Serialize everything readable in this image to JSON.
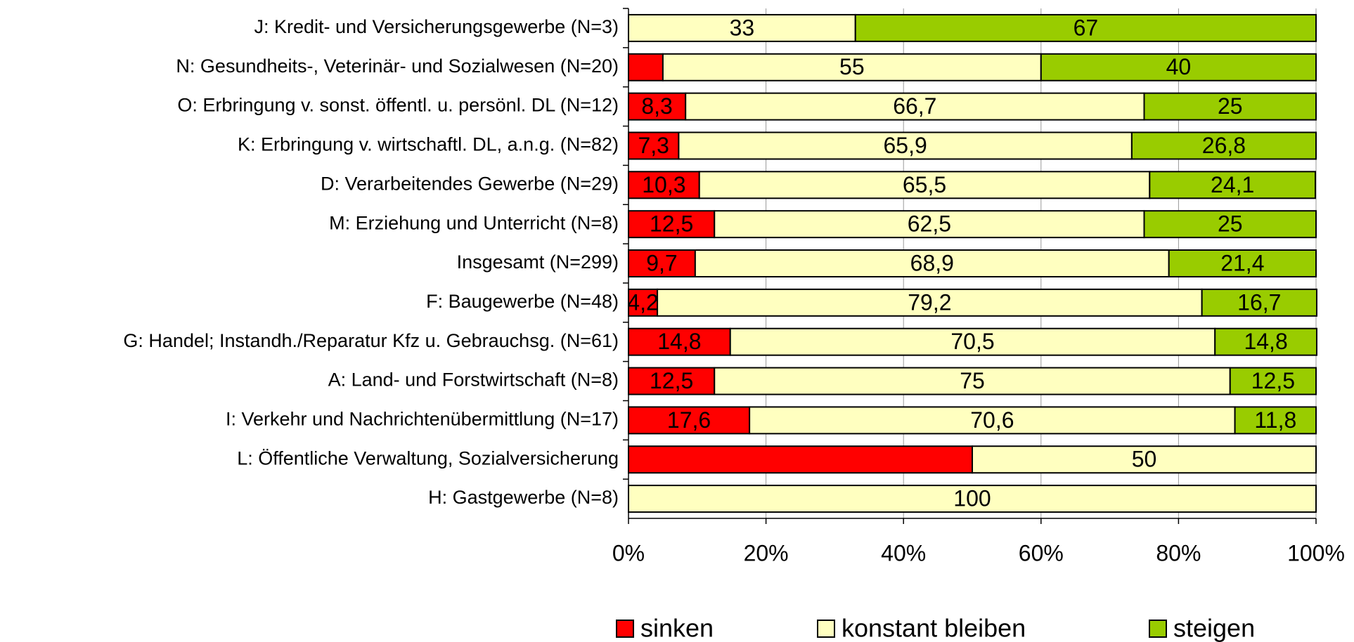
{
  "chart_data": {
    "type": "stacked-bar-horizontal",
    "categories": [
      "J: Kredit- und Versicherungsgewerbe (N=3)",
      "N: Gesundheits-, Veterinär- und Sozialwesen (N=20)",
      "O: Erbringung v. sonst. öffentl. u. persönl. DL (N=12)",
      "K: Erbringung v. wirtschaftl. DL, a.n.g. (N=82)",
      "D: Verarbeitendes Gewerbe (N=29)",
      "M: Erziehung und Unterricht (N=8)",
      "Insgesamt (N=299)",
      "F: Baugewerbe (N=48)",
      "G: Handel; Instandh./Reparatur Kfz u. Gebrauchsg. (N=61)",
      "A: Land- und Forstwirtschaft (N=8)",
      "I: Verkehr und Nachrichtenübermittlung (N=17)",
      "L: Öffentliche Verwaltung, Sozialversicherung",
      "H: Gastgewerbe (N=8)"
    ],
    "series": [
      {
        "name": "sinken",
        "color": "#ff0000",
        "values": [
          null,
          5,
          8.3,
          7.3,
          10.3,
          12.5,
          9.7,
          4.2,
          14.8,
          12.5,
          17.6,
          50,
          null
        ],
        "value_labels": [
          null,
          null,
          "8,3",
          "7,3",
          "10,3",
          "12,5",
          "9,7",
          "4,2",
          "14,8",
          "12,5",
          "17,6",
          null,
          null
        ]
      },
      {
        "name": "konstant bleiben",
        "color": "#ffffc0",
        "values": [
          33,
          55,
          66.7,
          65.9,
          65.5,
          62.5,
          68.9,
          79.2,
          70.5,
          75,
          70.6,
          50,
          100
        ],
        "value_labels": [
          "33",
          "55",
          "66,7",
          "65,9",
          "65,5",
          "62,5",
          "68,9",
          "79,2",
          "70,5",
          "75",
          "70,6",
          "50",
          "100"
        ]
      },
      {
        "name": "steigen",
        "color": "#99cc00",
        "values": [
          67,
          40,
          25,
          26.8,
          24.1,
          25,
          21.4,
          16.7,
          14.8,
          12.5,
          11.8,
          null,
          null
        ],
        "value_labels": [
          "67",
          "40",
          "25",
          "26,8",
          "24,1",
          "25",
          "21,4",
          "16,7",
          "14,8",
          "12,5",
          "11,8",
          null,
          null
        ]
      }
    ],
    "xlim": [
      0,
      100
    ],
    "xticks": [
      {
        "value": 0,
        "label": "0%"
      },
      {
        "value": 20,
        "label": "20%"
      },
      {
        "value": 40,
        "label": "40%"
      },
      {
        "value": 60,
        "label": "60%"
      },
      {
        "value": 80,
        "label": "80%"
      },
      {
        "value": 100,
        "label": "100%"
      }
    ],
    "grid": true,
    "legend": "bottom"
  }
}
